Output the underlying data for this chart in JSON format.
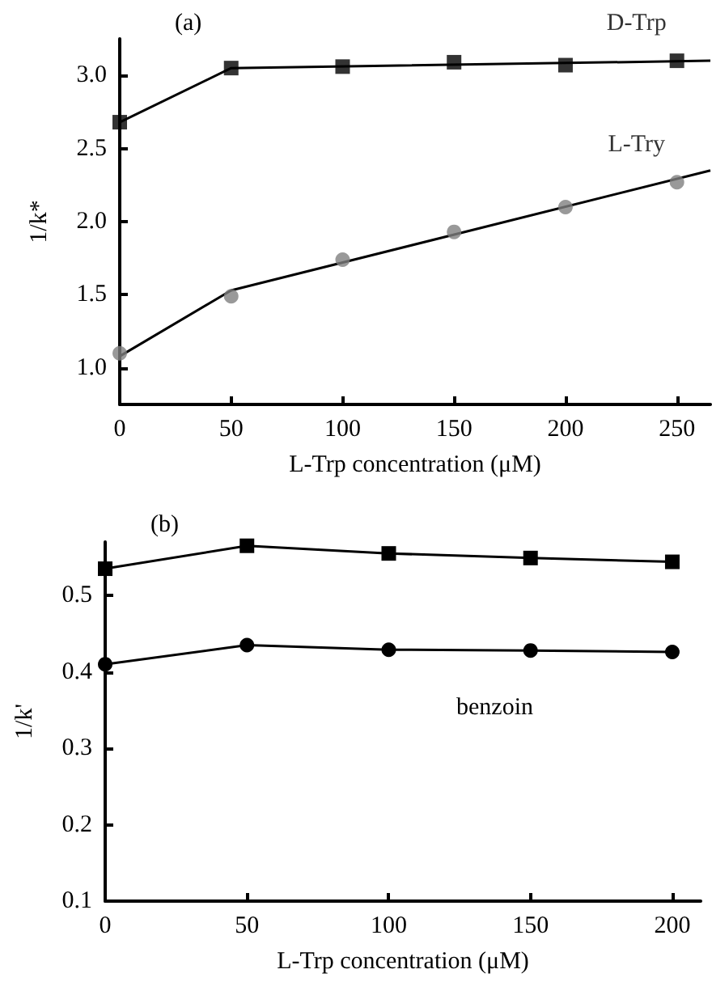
{
  "chart_data": [
    {
      "type": "scatter",
      "title": "(a)",
      "xlabel": "L-Trp concentration (μM)",
      "ylabel": "1/k*",
      "x": [
        0,
        50,
        100,
        150,
        200,
        250
      ],
      "series": [
        {
          "type": "line",
          "color": "#000000",
          "marker": "none",
          "x": [
            0,
            50,
            265
          ],
          "values": [
            2.68,
            3.05,
            3.1
          ]
        },
        {
          "name": "D-Trp",
          "color": "#000000",
          "marker": "square",
          "values": [
            2.68,
            3.05,
            3.06,
            3.09,
            3.07,
            3.1
          ]
        },
        {
          "type": "line",
          "color": "#000000",
          "marker": "none",
          "x": [
            0,
            50,
            265
          ],
          "values": [
            1.08,
            1.53,
            2.35
          ]
        },
        {
          "name": "L-Try",
          "color": "#808080",
          "marker": "circle",
          "values": [
            1.1,
            1.49,
            1.74,
            1.93,
            2.1,
            2.27
          ]
        }
      ],
      "xlim": [
        0,
        265
      ],
      "xticks": [
        0,
        50,
        100,
        150,
        200,
        250
      ],
      "ylim": [
        0.75,
        3.25
      ],
      "yticks": [
        {
          "value": 1,
          "label": "1.0"
        },
        1.5,
        {
          "value": 2,
          "label": "2.0"
        },
        2.5,
        {
          "value": 3,
          "label": "3.0"
        }
      ],
      "grid": false,
      "line_style": "solid"
    },
    {
      "type": "line",
      "title": "(b)",
      "xlabel": "L-Trp concentration (μM)",
      "ylabel": "1/k'",
      "x": [
        0,
        50,
        100,
        150,
        200
      ],
      "series": [
        {
          "color": "#000000",
          "marker": "square",
          "values": [
            0.535,
            0.565,
            0.555,
            0.549,
            0.544
          ]
        },
        {
          "color": "#000000",
          "marker": "circle",
          "values": [
            0.41,
            0.435,
            0.429,
            0.428,
            0.426
          ]
        }
      ],
      "annotations": [
        "benzoin"
      ],
      "xlim": [
        0,
        210
      ],
      "xticks": [
        0,
        50,
        100,
        150,
        200
      ],
      "ylim": [
        0.1,
        0.57
      ],
      "yticks": [
        0.1,
        0.2,
        0.3,
        0.4,
        0.5
      ],
      "grid": false,
      "line_style": "solid"
    }
  ]
}
